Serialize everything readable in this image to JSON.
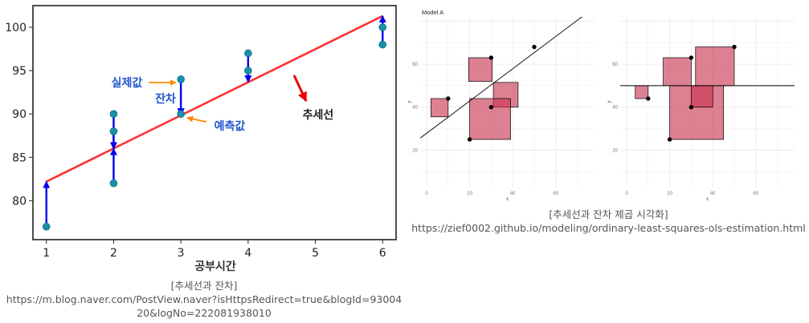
{
  "left_figure": {
    "caption": "[추세선과 잔차]",
    "url": "https://m.blog.naver.com/PostView.naver?isHttpsRedirect=true&blogId=9300420&logNo=222081938010"
  },
  "right_figure": {
    "caption": "[추세선과 잔차 제곱 시각화]",
    "url": "https://zief0002.github.io/modeling/ordinary-least-squares-ols-estimation.html"
  },
  "colors": {
    "trend_line": "#ff3333",
    "residual_arrow": "#0000ee",
    "actual_point": "#1a8fa8",
    "annotation_text": "#2255cc",
    "annotation_arrow": "#ff8800",
    "trend_label_arrow": "#ee0000",
    "square_fill": "#c8324e",
    "square_border": "#000000",
    "grid": "#ececec",
    "regression_line": "#000000"
  },
  "chart_data": [
    {
      "type": "scatter",
      "title": "",
      "xlabel": "공부시간",
      "ylabel": "",
      "xlim": [
        0.8,
        6.2
      ],
      "ylim": [
        75.5,
        102.5
      ],
      "xticks": [
        1,
        2,
        3,
        4,
        5,
        6
      ],
      "yticks": [
        80,
        85,
        90,
        95,
        100
      ],
      "grid": false,
      "trend_line": {
        "x": [
          1,
          6
        ],
        "y": [
          82.2,
          101.3
        ]
      },
      "series": [
        {
          "x": [
            1,
            2,
            2,
            2,
            3,
            3,
            4,
            4,
            6,
            6
          ],
          "actual": [
            77,
            90,
            88,
            82,
            94,
            90,
            97,
            95,
            100,
            98
          ],
          "predicted": [
            82.2,
            86.0,
            86.0,
            86.0,
            89.9,
            89.9,
            93.7,
            93.7,
            101.3,
            101.3
          ]
        }
      ],
      "annotations": {
        "actual_label": "실제값",
        "residual_label": "잔차",
        "predicted_label": "예측값",
        "trend_label": "추세선"
      }
    },
    {
      "type": "scatter",
      "panels": [
        {
          "title": "Model A",
          "xlabel": "x",
          "ylabel": "y",
          "xlim": [
            -3,
            78
          ],
          "ylim": [
            3,
            82
          ],
          "xticks": [
            0,
            20,
            40,
            60
          ],
          "yticks": [
            20,
            40,
            60
          ],
          "grid": true,
          "points": [
            {
              "x": 10,
              "y": 44
            },
            {
              "x": 20,
              "y": 25
            },
            {
              "x": 30,
              "y": 63
            },
            {
              "x": 30,
              "y": 40
            },
            {
              "x": 50,
              "y": 68
            }
          ],
          "line": {
            "x": [
              -3,
              78
            ],
            "y": [
              25.6,
              86.4
            ]
          },
          "squares": [
            {
              "x1": 2,
              "y1": 35.5,
              "x2": 10,
              "y2": 44
            },
            {
              "x1": 19.5,
              "y1": 52,
              "x2": 30.5,
              "y2": 63
            },
            {
              "x1": 31,
              "y1": 40,
              "x2": 42.5,
              "y2": 51.5
            },
            {
              "x1": 20,
              "y1": 25,
              "x2": 39,
              "y2": 44
            }
          ]
        },
        {
          "title": "",
          "xlabel": "x",
          "ylabel": "y",
          "xlim": [
            -3,
            78
          ],
          "ylim": [
            3,
            82
          ],
          "xticks": [
            0,
            20,
            40,
            60
          ],
          "yticks": [
            20,
            40,
            60
          ],
          "grid": true,
          "points": [
            {
              "x": 10,
              "y": 44
            },
            {
              "x": 20,
              "y": 25
            },
            {
              "x": 30,
              "y": 63
            },
            {
              "x": 30,
              "y": 40
            },
            {
              "x": 50,
              "y": 68
            }
          ],
          "line": {
            "x": [
              -3,
              78
            ],
            "y": [
              50,
              50
            ]
          },
          "squares": [
            {
              "x1": 4,
              "y1": 44,
              "x2": 10,
              "y2": 50
            },
            {
              "x1": 17,
              "y1": 50,
              "x2": 30,
              "y2": 63
            },
            {
              "x1": 32,
              "y1": 50,
              "x2": 50,
              "y2": 68
            },
            {
              "x1": 20,
              "y1": 25,
              "x2": 45,
              "y2": 50
            },
            {
              "x1": 30,
              "y1": 40,
              "x2": 40,
              "y2": 50
            }
          ]
        }
      ]
    }
  ]
}
